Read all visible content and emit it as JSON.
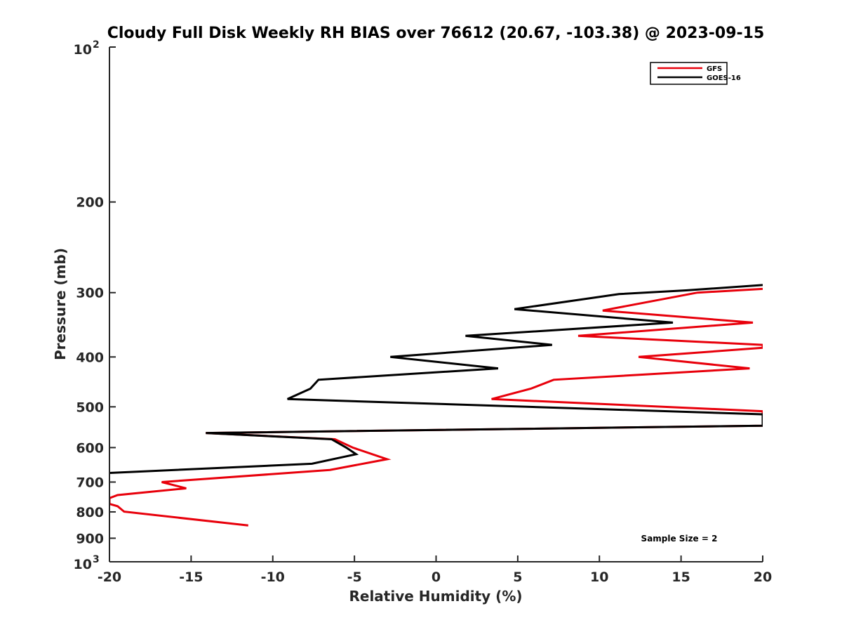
{
  "chart_data": {
    "type": "line",
    "title": "Cloudy Full Disk Weekly RH BIAS over 76612 (20.67, -103.38) @ 2023-09-15",
    "xlabel": "Relative Humidity (%)",
    "ylabel": "Pressure (mb)",
    "xlim": [
      -20,
      20
    ],
    "ylim": [
      100,
      1000
    ],
    "yscale": "log",
    "yreversed": true,
    "x_ticks": [
      -20,
      -15,
      -10,
      -5,
      0,
      5,
      10,
      15,
      20
    ],
    "x_tick_labels": [
      "-20",
      "-15",
      "-10",
      "-5",
      "0",
      "5",
      "10",
      "15",
      "20"
    ],
    "y_ticks": [
      200,
      300,
      400,
      500,
      600,
      700,
      800,
      900
    ],
    "y_tick_labels": [
      "200",
      "300",
      "400",
      "500",
      "600",
      "700",
      "800",
      "900"
    ],
    "y_end_ticks": [
      {
        "value": 100,
        "base": "10",
        "exp": "2"
      },
      {
        "value": 1000,
        "base": "10",
        "exp": "3"
      }
    ],
    "grid": false,
    "legend_position": "top-right",
    "annotation": "Sample Size = 2",
    "series": [
      {
        "name": "GFS",
        "color": "#e8000b",
        "points": [
          {
            "x": 20.0,
            "p": 295
          },
          {
            "x": 16.0,
            "p": 300
          },
          {
            "x": 10.2,
            "p": 325
          },
          {
            "x": 19.4,
            "p": 343
          },
          {
            "x": 8.7,
            "p": 364
          },
          {
            "x": 20.0,
            "p": 379
          },
          {
            "x": 20.0,
            "p": 384
          },
          {
            "x": 12.4,
            "p": 400
          },
          {
            "x": 19.2,
            "p": 421
          },
          {
            "x": 7.2,
            "p": 443
          },
          {
            "x": 5.8,
            "p": 461
          },
          {
            "x": 3.4,
            "p": 483
          },
          {
            "x": 20.0,
            "p": 510
          },
          {
            "x": 20.0,
            "p": 544
          },
          {
            "x": -14.1,
            "p": 562
          },
          {
            "x": -6.2,
            "p": 578
          },
          {
            "x": -5.1,
            "p": 600
          },
          {
            "x": -3.0,
            "p": 632
          },
          {
            "x": -6.5,
            "p": 663
          },
          {
            "x": -16.8,
            "p": 700
          },
          {
            "x": -15.3,
            "p": 720
          },
          {
            "x": -19.5,
            "p": 742
          },
          {
            "x": -20.0,
            "p": 752
          },
          {
            "x": -20.0,
            "p": 772
          },
          {
            "x": -19.5,
            "p": 780
          },
          {
            "x": -19.1,
            "p": 799
          },
          {
            "x": -11.5,
            "p": 850
          }
        ]
      },
      {
        "name": "GOES-16",
        "color": "#000000",
        "points": [
          {
            "x": 20.0,
            "p": 290
          },
          {
            "x": 15.3,
            "p": 297
          },
          {
            "x": 11.2,
            "p": 302
          },
          {
            "x": 4.8,
            "p": 323
          },
          {
            "x": 14.5,
            "p": 343
          },
          {
            "x": 1.8,
            "p": 364
          },
          {
            "x": 7.1,
            "p": 379
          },
          {
            "x": -2.8,
            "p": 400
          },
          {
            "x": 3.8,
            "p": 421
          },
          {
            "x": -7.2,
            "p": 443
          },
          {
            "x": -7.7,
            "p": 461
          },
          {
            "x": -9.1,
            "p": 483
          },
          {
            "x": 20.0,
            "p": 517
          },
          {
            "x": 20.0,
            "p": 544
          },
          {
            "x": -14.1,
            "p": 562
          },
          {
            "x": -6.4,
            "p": 578
          },
          {
            "x": -5.5,
            "p": 600
          },
          {
            "x": -4.9,
            "p": 618
          },
          {
            "x": -7.6,
            "p": 645
          },
          {
            "x": -20.0,
            "p": 672
          }
        ]
      }
    ]
  }
}
